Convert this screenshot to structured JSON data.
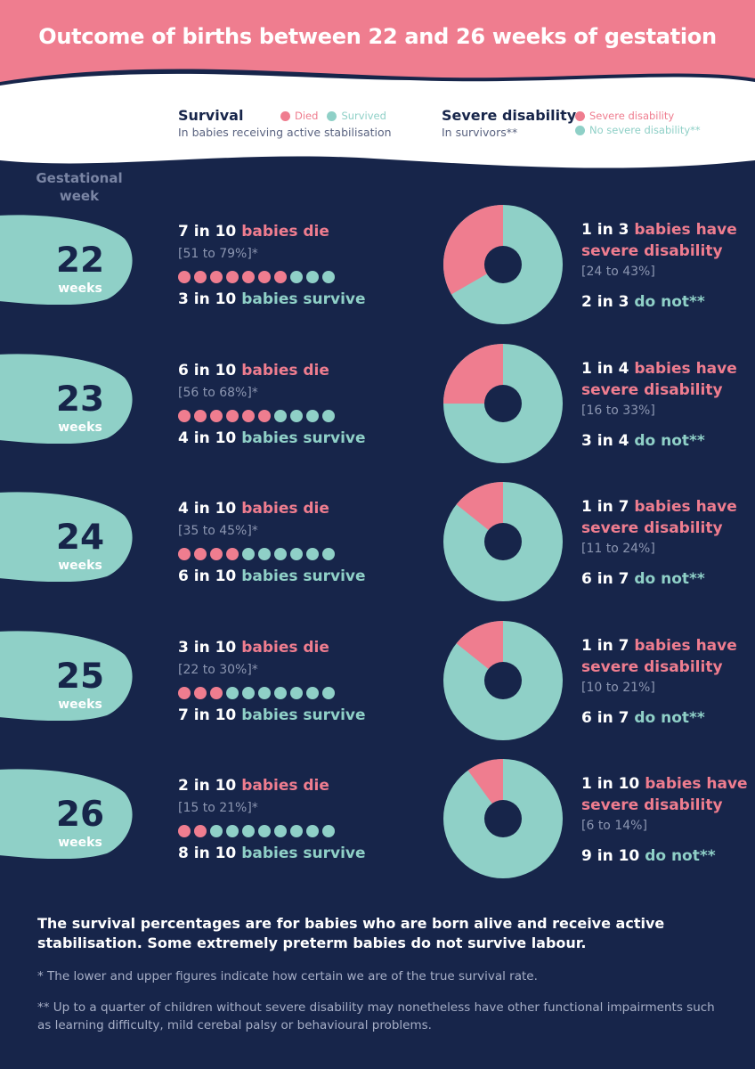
{
  "title": "Outcome of births between 22 and 26 weeks of gestation",
  "colors": {
    "pink": "#ef7d8f",
    "teal": "#8fd0c7",
    "navy": "#17254a",
    "white": "#ffffff"
  },
  "legend": {
    "survival": {
      "heading": "Survival",
      "sub": "In babies receiving active stabilisation",
      "died": "Died",
      "survived": "Survived"
    },
    "disability": {
      "heading": "Severe disability",
      "sub": "In survivors**",
      "severe": "Severe disability",
      "none": "No severe disability**"
    }
  },
  "gestational_label": "Gestational week",
  "rows": [
    {
      "week": "22",
      "unit": "weeks",
      "die_n": "7 in 10",
      "die_t": "babies die",
      "die_range": "[51 to 79%]*",
      "surv_n": "3 in 10",
      "surv_t": "babies survive",
      "dis_n": "1 in 3",
      "dis_t": "babies have severe disability",
      "dis_range": "[24 to 43%]",
      "not_n": "2 in 3",
      "not_t": "do not**"
    },
    {
      "week": "23",
      "unit": "weeks",
      "die_n": "6 in 10",
      "die_t": "babies die",
      "die_range": "[56 to 68%]*",
      "surv_n": "4 in 10",
      "surv_t": "babies survive",
      "dis_n": "1 in 4",
      "dis_t": "babies have severe disability",
      "dis_range": "[16 to 33%]",
      "not_n": "3 in 4",
      "not_t": "do not**"
    },
    {
      "week": "24",
      "unit": "weeks",
      "die_n": "4 in 10",
      "die_t": "babies die",
      "die_range": "[35 to 45%]*",
      "surv_n": "6 in 10",
      "surv_t": "babies survive",
      "dis_n": "1 in 7",
      "dis_t": "babies have severe disability",
      "dis_range": "[11 to 24%]",
      "not_n": "6 in 7",
      "not_t": "do not**"
    },
    {
      "week": "25",
      "unit": "weeks",
      "die_n": "3 in 10",
      "die_t": "babies die",
      "die_range": "[22 to 30%]*",
      "surv_n": "7 in 10",
      "surv_t": "babies survive",
      "dis_n": "1 in 7",
      "dis_t": "babies have severe disability",
      "dis_range": "[10 to 21%]",
      "not_n": "6 in 7",
      "not_t": "do not**"
    },
    {
      "week": "26",
      "unit": "weeks",
      "die_n": "2 in 10",
      "die_t": "babies die",
      "die_range": "[15 to 21%]*",
      "surv_n": "8 in 10",
      "surv_t": "babies survive",
      "dis_n": "1 in 10",
      "dis_t": "babies have severe disability",
      "dis_range": "[6 to 14%]",
      "not_n": "9 in 10",
      "not_t": "do not**"
    }
  ],
  "notes": {
    "main": "The survival percentages are for babies who are born alive and receive active stabilisation. Some extremely preterm babies do not survive labour.",
    "n1": "* The lower and upper figures indicate how certain we are of the true survival rate.",
    "n2": "** Up to a quarter of children without severe disability may nonetheless have other functional impairments such as learning difficulty, mild cerebal palsy or behavioural problems."
  },
  "chart_data": [
    {
      "type": "bar",
      "title": "Survival",
      "categories": [
        "22 weeks",
        "23 weeks",
        "24 weeks",
        "25 weeks",
        "26 weeks"
      ],
      "series": [
        {
          "name": "Died",
          "values": [
            7,
            6,
            4,
            3,
            2
          ]
        },
        {
          "name": "Survived",
          "values": [
            3,
            4,
            6,
            7,
            8
          ]
        }
      ]
    },
    {
      "type": "pie",
      "title": "Severe disability",
      "categories": [
        "22 weeks",
        "23 weeks",
        "24 weeks",
        "25 weeks",
        "26 weeks"
      ],
      "series": [
        {
          "name": "Severe disability",
          "values": [
            0.3333,
            0.25,
            0.1429,
            0.1429,
            0.1
          ]
        },
        {
          "name": "No severe disability**",
          "values": [
            0.6667,
            0.75,
            0.8571,
            0.8571,
            0.9
          ]
        }
      ]
    }
  ]
}
